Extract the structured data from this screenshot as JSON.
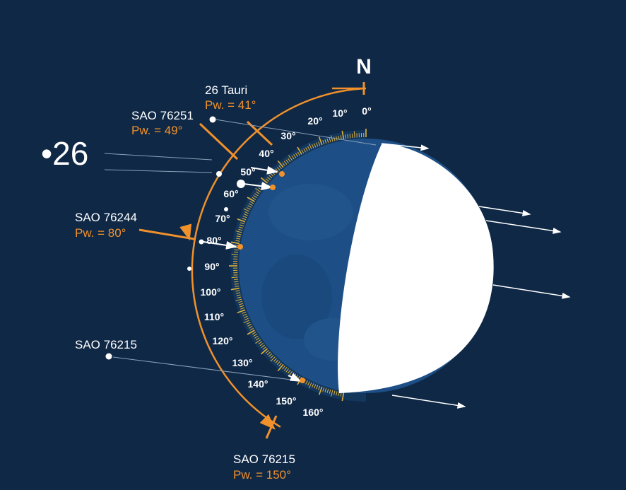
{
  "north_label": "N",
  "star_26": "•26",
  "stars": [
    {
      "id": "26-tauri",
      "name": "26 Tauri",
      "pw": "Pw. = 41°"
    },
    {
      "id": "sao-76251",
      "name": "SAO 76251",
      "pw": "Pw. = 49°"
    },
    {
      "id": "sao-76244",
      "name": "SAO 76244",
      "pw": "Pw. = 80°"
    },
    {
      "id": "sao-76215-left",
      "name": "SAO 76215",
      "pw": ""
    },
    {
      "id": "sao-76215-bottom",
      "name": "SAO 76215",
      "pw": "Pw. = 150°"
    }
  ],
  "degree_labels": [
    "0°",
    "10°",
    "20°",
    "30°",
    "40°",
    "50°",
    "60°",
    "70°",
    "80°",
    "90°",
    "100°",
    "110°",
    "120°",
    "130°",
    "140°",
    "150°",
    "160°"
  ],
  "colors": {
    "background": "#0f2846",
    "moon_dark": "#1d4f86",
    "moon_lit": "#ffffff",
    "accent_orange": "#f0912b",
    "scale_yellow": "#e0b23a"
  }
}
